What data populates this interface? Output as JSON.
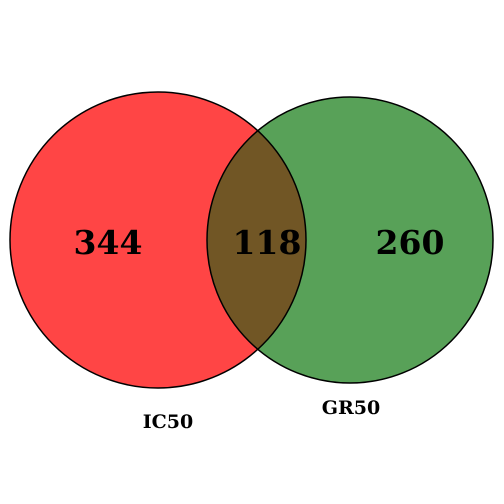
{
  "venn": {
    "sets": [
      {
        "name": "IC50",
        "only_count": "344",
        "color": "#ff0000"
      },
      {
        "name": "GR50",
        "only_count": "260",
        "color": "#2e8a2e"
      }
    ],
    "overlap_count": "118",
    "overlap_color": "#715625"
  }
}
